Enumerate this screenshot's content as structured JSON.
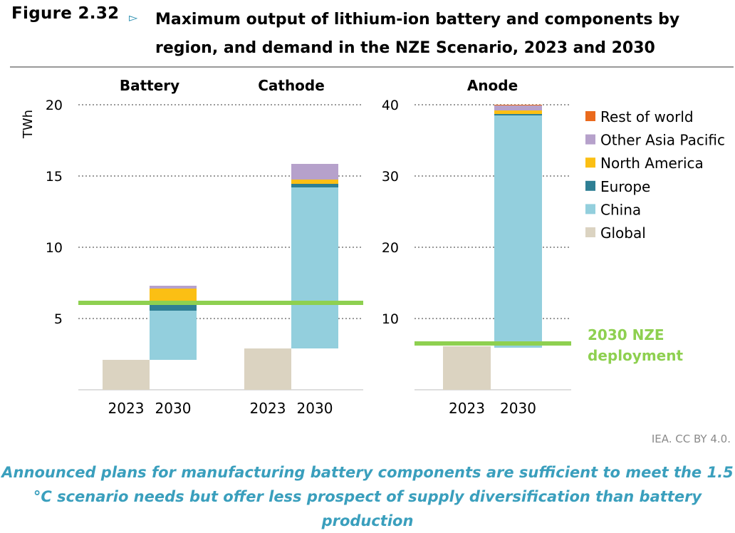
{
  "figure": {
    "label": "Figure 2.32",
    "arrow": "▻",
    "title": "Maximum output of lithium-ion battery and components by region, and demand in the NZE Scenario, 2023 and 2030"
  },
  "source": "IEA. CC BY 4.0.",
  "caption": "Announced plans for manufacturing battery components are sufficient to meet the 1.5 °C scenario needs but offer less prospect of supply diversification than battery production",
  "colors": {
    "Global": "#dbd3c1",
    "China": "#93cfdd",
    "Europe": "#2e7f94",
    "North America": "#fbbf14",
    "Other Asia Pacific": "#b6a1cb",
    "Rest of world": "#ea6a1d",
    "nze": "#8ed050",
    "grid": "#9a9a9a",
    "nze_text": "#8ed050"
  },
  "chart_data": [
    {
      "type": "bar",
      "stacked": true,
      "panel": "left",
      "ylabel": "TWh",
      "ylim": [
        0,
        20
      ],
      "yticks": [
        5,
        10,
        15,
        20
      ],
      "groups": [
        "Battery",
        "Cathode"
      ],
      "categories": [
        "2023",
        "2030"
      ],
      "series": [
        {
          "name": "Global",
          "values": {
            "Battery": [
              2.1,
              0
            ],
            "Cathode": [
              2.9,
              0
            ]
          }
        },
        {
          "name": "China",
          "values": {
            "Battery": [
              0,
              3.6
            ],
            "Cathode": [
              0,
              11.3
            ]
          }
        },
        {
          "name": "Europe",
          "values": {
            "Battery": [
              0,
              0.3
            ],
            "Cathode": [
              0,
              0.25
            ]
          }
        },
        {
          "name": "North America",
          "values": {
            "Battery": [
              0,
              1.1
            ],
            "Cathode": [
              0,
              0.3
            ]
          }
        },
        {
          "name": "Other Asia Pacific",
          "values": {
            "Battery": [
              0,
              0.2
            ],
            "Cathode": [
              0,
              1.1
            ]
          }
        },
        {
          "name": "Rest of world",
          "values": {
            "Battery": [
              0,
              0
            ],
            "Cathode": [
              0,
              0
            ]
          }
        }
      ],
      "stack_base_2030": {
        "Battery": 2.1,
        "Cathode": 2.9
      },
      "extra_segments": [
        {
          "group": "Battery",
          "category": "2030",
          "series": "China",
          "value": 0.7
        },
        {
          "group": "Battery",
          "category": "2030",
          "series": "Europe",
          "value": 0.3
        }
      ],
      "nze_deployment": 6.1
    },
    {
      "type": "bar",
      "stacked": true,
      "panel": "right",
      "ylim": [
        0,
        40
      ],
      "yticks": [
        10,
        20,
        30,
        40
      ],
      "groups": [
        "Anode"
      ],
      "categories": [
        "2023",
        "2030"
      ],
      "series": [
        {
          "name": "Global",
          "values": {
            "Anode": [
              6.1,
              0
            ]
          }
        },
        {
          "name": "China",
          "values": {
            "Anode": [
              0,
              32.6
            ]
          }
        },
        {
          "name": "Europe",
          "values": {
            "Anode": [
              0,
              0.2
            ]
          }
        },
        {
          "name": "North America",
          "values": {
            "Anode": [
              0,
              0.5
            ]
          }
        },
        {
          "name": "Other Asia Pacific",
          "values": {
            "Anode": [
              0,
              0.7
            ]
          }
        },
        {
          "name": "Rest of world",
          "values": {
            "Anode": [
              0,
              0.1
            ]
          }
        }
      ],
      "stack_base_2030": {
        "Anode": 5.9
      },
      "nze_deployment": 6.5
    }
  ],
  "legend": [
    "Rest of world",
    "Other Asia Pacific",
    "North America",
    "Europe",
    "China",
    "Global"
  ],
  "annotation": {
    "line1": "2030 NZE",
    "line2": "deployment"
  }
}
